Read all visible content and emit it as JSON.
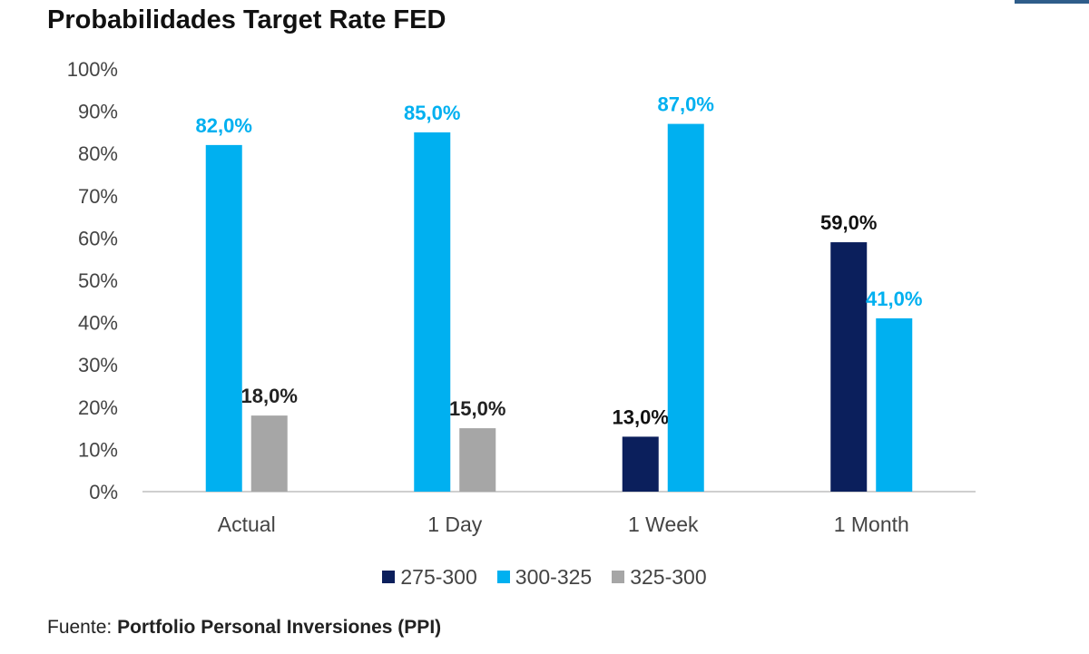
{
  "chart_data": {
    "type": "bar",
    "title": "Probabilidades Target Rate FED",
    "categories": [
      "Actual",
      "1 Day",
      "1 Week",
      "1 Month"
    ],
    "series": [
      {
        "name": "275-300",
        "color": "#0b1f5c",
        "values": [
          null,
          null,
          13.0,
          59.0
        ],
        "labels": [
          "",
          "",
          "13,0%",
          "59,0%"
        ],
        "label_color": "#111111"
      },
      {
        "name": "300-325",
        "color": "#00b0f0",
        "values": [
          82.0,
          85.0,
          87.0,
          41.0
        ],
        "labels": [
          "82,0%",
          "85,0%",
          "87,0%",
          "41,0%"
        ],
        "label_color": "#00b0f0"
      },
      {
        "name": "325-300",
        "color": "#a6a6a6",
        "values": [
          18.0,
          15.0,
          null,
          null
        ],
        "labels": [
          "18,0%",
          "15,0%",
          "",
          ""
        ],
        "label_color": "#222222"
      }
    ],
    "yticks": [
      "0%",
      "10%",
      "20%",
      "30%",
      "40%",
      "50%",
      "60%",
      "70%",
      "80%",
      "90%",
      "100%"
    ],
    "ylim": [
      0,
      100
    ],
    "grid": false,
    "legend_position": "bottom"
  },
  "source": {
    "prefix": "Fuente:",
    "name": "Portfolio Personal Inversiones (PPI)"
  }
}
